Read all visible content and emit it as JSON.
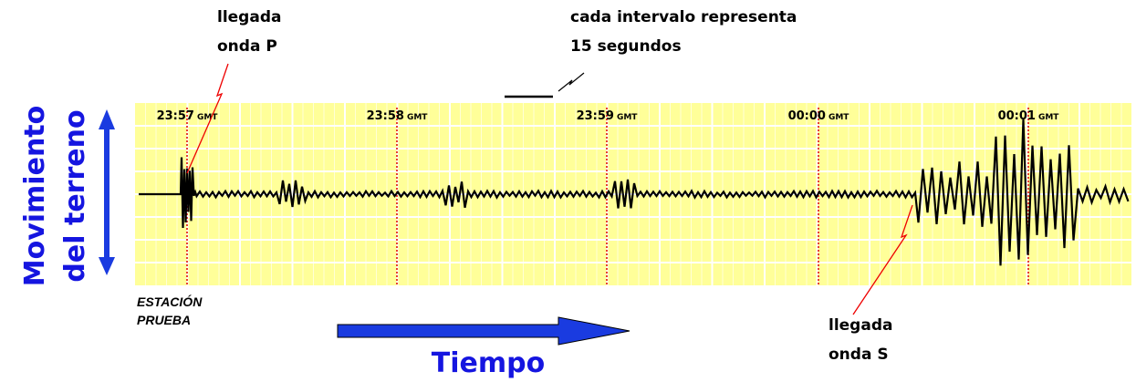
{
  "annotations": {
    "p_wave": [
      "llegada",
      "onda P"
    ],
    "s_wave": [
      "llegada",
      "onda S"
    ],
    "interval": [
      "cada intervalo representa",
      "15 segundos"
    ]
  },
  "axis_labels": {
    "vertical": [
      "Movimiento",
      "del terreno"
    ],
    "horizontal": "Tiempo"
  },
  "station": [
    "ESTACIÓN",
    "PRUEBA"
  ],
  "time_markers": [
    {
      "time": "23:57",
      "zone": "GMT"
    },
    {
      "time": "23:58",
      "zone": "GMT"
    },
    {
      "time": "23:59",
      "zone": "GMT"
    },
    {
      "time": "00:00",
      "zone": "GMT"
    },
    {
      "time": "00:01",
      "zone": "GMT"
    }
  ]
}
